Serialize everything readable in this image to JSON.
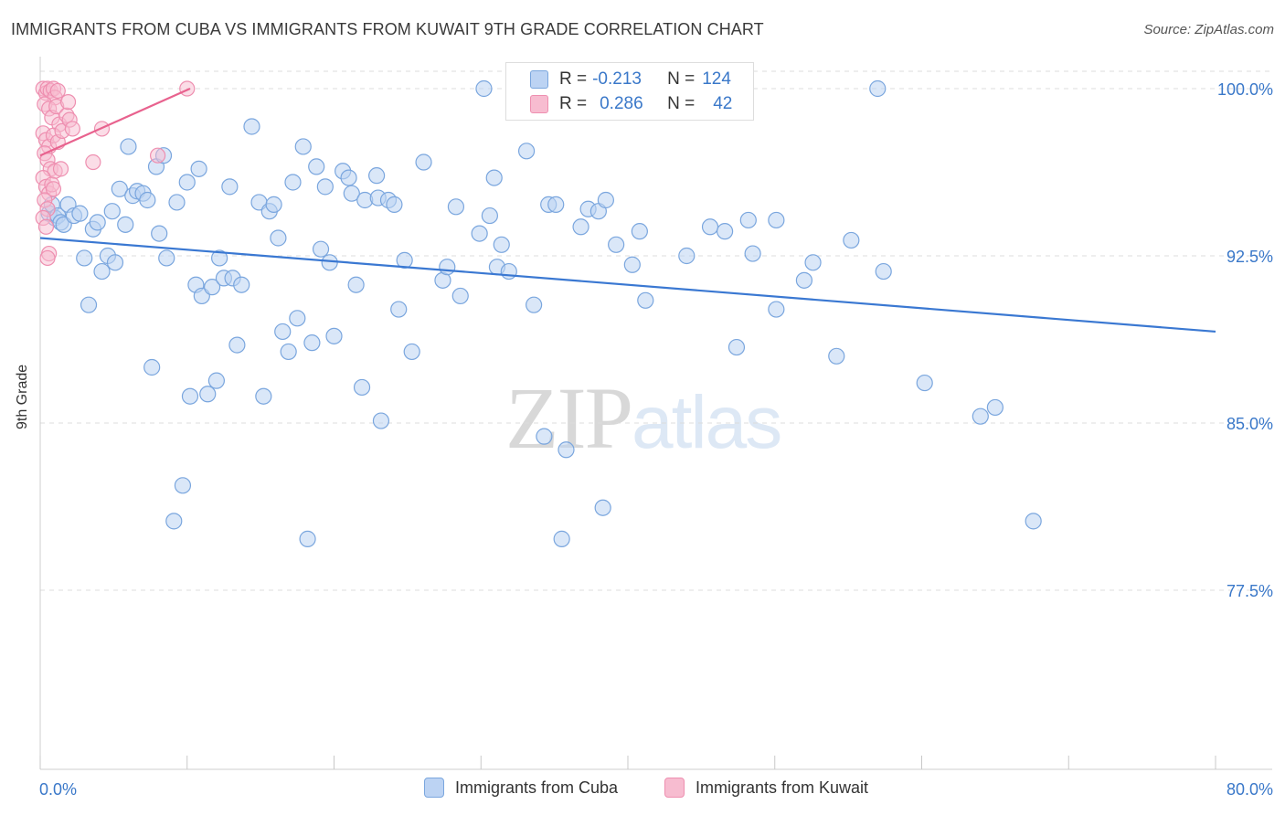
{
  "title": "IMMIGRANTS FROM CUBA VS IMMIGRANTS FROM KUWAIT 9TH GRADE CORRELATION CHART",
  "source": "Source: ZipAtlas.com",
  "watermark": {
    "zip": "ZIP",
    "atlas": "atlas"
  },
  "stats": {
    "cuba": {
      "r_label": "R =",
      "r_value": "-0.213",
      "n_label": "N =",
      "n_value": "124"
    },
    "kuwait": {
      "r_label": "R =",
      "r_value": "0.286",
      "n_label": "N =",
      "n_value": "42"
    }
  },
  "legend": {
    "cuba": "Immigrants from Cuba",
    "kuwait": "Immigrants from Kuwait"
  },
  "colors": {
    "cuba_fill": "#bcd3f3",
    "cuba_stroke": "#7aa6de",
    "cuba_line": "#3a78d2",
    "kuwait_fill": "#f7bcd0",
    "kuwait_stroke": "#ee8fb0",
    "kuwait_line": "#e8628e",
    "axis_text": "#3a78c9",
    "grid": "#dcdcdc"
  },
  "chart_data": {
    "type": "scatter",
    "title": "IMMIGRANTS FROM CUBA VS IMMIGRANTS FROM KUWAIT 9TH GRADE CORRELATION CHART",
    "xlabel": "",
    "ylabel": "9th Grade",
    "xlim": [
      0,
      80
    ],
    "ylim": [
      70,
      100.5
    ],
    "x_tick_labels": [
      "0.0%",
      "80.0%"
    ],
    "y_ticks": [
      77.5,
      85.0,
      92.5,
      100.0
    ],
    "y_tick_labels": [
      "77.5%",
      "85.0%",
      "92.5%",
      "100.0%"
    ],
    "grid": "horizontal dashed",
    "legend_position": "bottom-center",
    "series": [
      {
        "name": "Immigrants from Cuba",
        "trend": {
          "x": [
            0,
            80
          ],
          "y": [
            93.3,
            89.1
          ]
        },
        "points": [
          [
            0.6,
            94.4
          ],
          [
            0.8,
            94.8
          ],
          [
            1.0,
            94.2
          ],
          [
            1.2,
            94.3
          ],
          [
            1.4,
            94.0
          ],
          [
            1.6,
            93.9
          ],
          [
            1.9,
            94.8
          ],
          [
            2.3,
            94.3
          ],
          [
            2.7,
            94.4
          ],
          [
            3.0,
            92.4
          ],
          [
            3.3,
            90.3
          ],
          [
            3.6,
            93.7
          ],
          [
            3.9,
            94.0
          ],
          [
            4.2,
            91.8
          ],
          [
            4.6,
            92.5
          ],
          [
            4.9,
            94.5
          ],
          [
            5.1,
            92.2
          ],
          [
            5.4,
            95.5
          ],
          [
            5.8,
            93.9
          ],
          [
            6.0,
            97.4
          ],
          [
            6.3,
            95.2
          ],
          [
            6.6,
            95.4
          ],
          [
            7.0,
            95.3
          ],
          [
            7.3,
            95.0
          ],
          [
            7.6,
            87.5
          ],
          [
            7.9,
            96.5
          ],
          [
            8.1,
            93.5
          ],
          [
            8.4,
            97.0
          ],
          [
            8.6,
            92.4
          ],
          [
            9.1,
            80.6
          ],
          [
            9.3,
            94.9
          ],
          [
            9.7,
            82.2
          ],
          [
            10.0,
            95.8
          ],
          [
            10.2,
            86.2
          ],
          [
            10.6,
            91.2
          ],
          [
            10.8,
            96.4
          ],
          [
            11.0,
            90.7
          ],
          [
            11.4,
            86.3
          ],
          [
            11.7,
            91.1
          ],
          [
            12.0,
            86.9
          ],
          [
            12.2,
            92.4
          ],
          [
            12.5,
            91.5
          ],
          [
            12.9,
            95.6
          ],
          [
            13.1,
            91.5
          ],
          [
            13.4,
            88.5
          ],
          [
            13.7,
            91.2
          ],
          [
            14.4,
            98.3
          ],
          [
            14.9,
            94.9
          ],
          [
            15.2,
            86.2
          ],
          [
            15.6,
            94.5
          ],
          [
            15.9,
            94.8
          ],
          [
            16.2,
            93.3
          ],
          [
            16.5,
            89.1
          ],
          [
            16.9,
            88.2
          ],
          [
            17.2,
            95.8
          ],
          [
            17.5,
            89.7
          ],
          [
            17.9,
            97.4
          ],
          [
            18.2,
            79.8
          ],
          [
            18.5,
            88.6
          ],
          [
            18.8,
            96.5
          ],
          [
            19.1,
            92.8
          ],
          [
            19.4,
            95.6
          ],
          [
            19.7,
            92.2
          ],
          [
            20.0,
            88.9
          ],
          [
            20.6,
            96.3
          ],
          [
            21.0,
            96.0
          ],
          [
            21.2,
            95.3
          ],
          [
            21.5,
            91.2
          ],
          [
            21.9,
            86.6
          ],
          [
            22.1,
            95.0
          ],
          [
            22.9,
            96.1
          ],
          [
            23.0,
            95.1
          ],
          [
            23.2,
            85.1
          ],
          [
            23.7,
            95.0
          ],
          [
            24.1,
            94.8
          ],
          [
            24.4,
            90.1
          ],
          [
            24.8,
            92.3
          ],
          [
            25.3,
            88.2
          ],
          [
            26.1,
            96.7
          ],
          [
            27.4,
            91.4
          ],
          [
            27.7,
            92.0
          ],
          [
            28.3,
            94.7
          ],
          [
            28.6,
            90.7
          ],
          [
            29.9,
            93.5
          ],
          [
            30.2,
            100.0
          ],
          [
            30.6,
            94.3
          ],
          [
            30.9,
            96.0
          ],
          [
            31.1,
            92.0
          ],
          [
            31.4,
            93.0
          ],
          [
            31.9,
            91.8
          ],
          [
            33.1,
            97.2
          ],
          [
            33.6,
            90.3
          ],
          [
            34.3,
            84.4
          ],
          [
            34.6,
            94.8
          ],
          [
            35.1,
            94.8
          ],
          [
            35.5,
            79.8
          ],
          [
            35.8,
            83.8
          ],
          [
            36.8,
            93.8
          ],
          [
            37.3,
            94.6
          ],
          [
            38.0,
            94.5
          ],
          [
            38.3,
            81.2
          ],
          [
            38.5,
            95.0
          ],
          [
            39.2,
            93.0
          ],
          [
            40.3,
            92.1
          ],
          [
            40.8,
            93.6
          ],
          [
            41.2,
            90.5
          ],
          [
            44.0,
            92.5
          ],
          [
            45.6,
            93.8
          ],
          [
            46.6,
            93.6
          ],
          [
            47.4,
            88.4
          ],
          [
            48.2,
            94.1
          ],
          [
            48.5,
            92.6
          ],
          [
            50.1,
            90.1
          ],
          [
            50.1,
            94.1
          ],
          [
            52.0,
            91.4
          ],
          [
            52.6,
            92.2
          ],
          [
            54.2,
            88.0
          ],
          [
            55.2,
            93.2
          ],
          [
            57.0,
            100.0
          ],
          [
            57.4,
            91.8
          ],
          [
            60.2,
            86.8
          ],
          [
            64.0,
            85.3
          ],
          [
            65.0,
            85.7
          ],
          [
            67.6,
            80.6
          ]
        ]
      },
      {
        "name": "Immigrants from Kuwait",
        "trend": {
          "x": [
            0,
            10.2
          ],
          "y": [
            97.0,
            100.0
          ]
        },
        "points": [
          [
            0.2,
            100.0
          ],
          [
            0.4,
            99.8
          ],
          [
            0.5,
            100.0
          ],
          [
            0.7,
            99.9
          ],
          [
            0.9,
            100.0
          ],
          [
            1.0,
            99.6
          ],
          [
            1.2,
            99.9
          ],
          [
            0.3,
            99.3
          ],
          [
            0.6,
            99.1
          ],
          [
            0.8,
            98.7
          ],
          [
            1.1,
            99.2
          ],
          [
            1.3,
            98.4
          ],
          [
            0.2,
            98.0
          ],
          [
            0.4,
            97.7
          ],
          [
            0.6,
            97.4
          ],
          [
            0.9,
            97.9
          ],
          [
            1.2,
            97.6
          ],
          [
            1.5,
            98.1
          ],
          [
            0.3,
            97.1
          ],
          [
            0.5,
            96.8
          ],
          [
            0.7,
            96.4
          ],
          [
            1.0,
            96.3
          ],
          [
            0.2,
            96.0
          ],
          [
            0.4,
            95.6
          ],
          [
            0.6,
            95.3
          ],
          [
            0.8,
            95.7
          ],
          [
            0.3,
            95.0
          ],
          [
            0.5,
            94.6
          ],
          [
            0.2,
            94.2
          ],
          [
            0.4,
            93.8
          ],
          [
            0.6,
            92.6
          ],
          [
            0.5,
            92.4
          ],
          [
            1.8,
            98.8
          ],
          [
            1.9,
            99.4
          ],
          [
            2.0,
            98.6
          ],
          [
            2.2,
            98.2
          ],
          [
            3.6,
            96.7
          ],
          [
            4.2,
            98.2
          ],
          [
            8.0,
            97.0
          ],
          [
            10.0,
            100.0
          ],
          [
            1.4,
            96.4
          ],
          [
            0.9,
            95.5
          ]
        ]
      }
    ]
  }
}
